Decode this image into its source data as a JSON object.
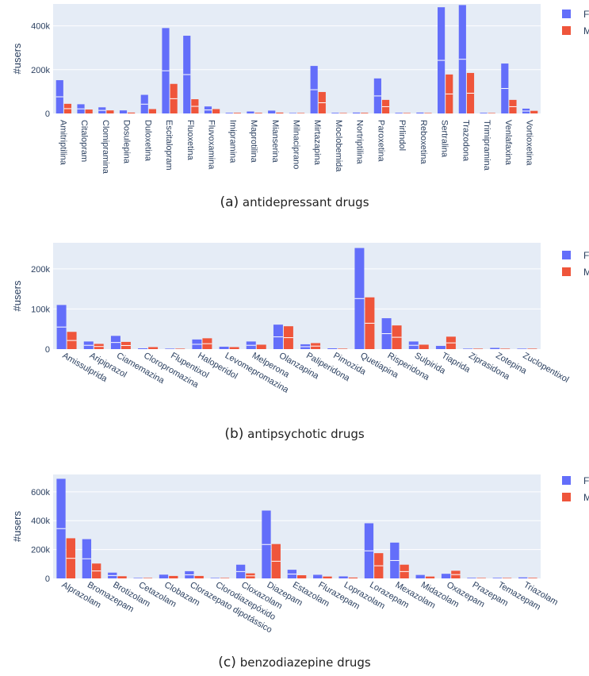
{
  "colors": {
    "F": "#636efa",
    "M": "#ef553b",
    "grid": "#c8c8c8",
    "plot_bg": "#e5ecf6"
  },
  "legend": [
    "F",
    "M"
  ],
  "chart_data": [
    {
      "id": "a",
      "type": "bar",
      "caption_prefix": "(a)",
      "caption_text": "antidepressant drugs",
      "ylabel": "#users",
      "ylim": [
        0,
        500000
      ],
      "yticks": [
        0,
        200000,
        400000
      ],
      "ytick_labels": [
        "0",
        "200k",
        "400k"
      ],
      "x_label_rotation": "vertical",
      "categories": [
        "Amitriptilina",
        "Citalopram",
        "Clomipramina",
        "Dosulepina",
        "Duloxetina",
        "Escitalopram",
        "Fluoxetina",
        "Fluvoxamina",
        "Imipramina",
        "Maprotilina",
        "Mianserina",
        "Milnaciprano",
        "Mirtazapina",
        "Moclobemida",
        "Nortriptilina",
        "Paroxetina",
        "Pirlindol",
        "Reboxetina",
        "Sertralina",
        "Trazodona",
        "Trimipramina",
        "Venlafaxina",
        "Vortioxetina"
      ],
      "series": [
        {
          "name": "F",
          "values": [
            152000,
            42000,
            28000,
            14000,
            85000,
            390000,
            355000,
            32000,
            3000,
            9000,
            13000,
            2000,
            217000,
            3000,
            4000,
            160000,
            3000,
            4000,
            485000,
            495000,
            3000,
            228000,
            22000
          ]
        },
        {
          "name": "M",
          "values": [
            44000,
            18000,
            14000,
            4000,
            20000,
            135000,
            65000,
            20000,
            3000,
            3000,
            4000,
            1000,
            98000,
            2000,
            3000,
            62000,
            1000,
            2000,
            178000,
            185000,
            2000,
            62000,
            12000
          ]
        }
      ]
    },
    {
      "id": "b",
      "type": "bar",
      "caption_prefix": "(b)",
      "caption_text": "antipsychotic drugs",
      "ylabel": "#users",
      "ylim": [
        0,
        265000
      ],
      "yticks": [
        0,
        100000,
        200000
      ],
      "ytick_labels": [
        "0",
        "100k",
        "200k"
      ],
      "x_label_rotation": "diagonal",
      "categories": [
        "Amissulprida",
        "Aripiprazol",
        "Ciamemazina",
        "Cloropromazina",
        "Flupentixol",
        "Haloperidol",
        "Levomepromazina",
        "Melperona",
        "Olanzapina",
        "Paliperidona",
        "Pimozida",
        "Quetiapina",
        "Risperidona",
        "Sulpirida",
        "Tiaprida",
        "Ziprasidona",
        "Zotepina",
        "Zuclopentixol"
      ],
      "series": [
        {
          "name": "F",
          "values": [
            110000,
            19000,
            33000,
            2000,
            1000,
            24000,
            6000,
            19000,
            61000,
            12000,
            2000,
            252000,
            77000,
            19000,
            8000,
            1000,
            3000,
            1000
          ]
        },
        {
          "name": "M",
          "values": [
            43000,
            13000,
            18000,
            5000,
            1000,
            27000,
            5000,
            11000,
            57000,
            15000,
            1000,
            129000,
            59000,
            11000,
            31000,
            1000,
            1000,
            1000
          ]
        }
      ]
    },
    {
      "id": "c",
      "type": "bar",
      "caption_prefix": "(c)",
      "caption_text": "benzodiazepine drugs",
      "ylabel": "#users",
      "ylim": [
        0,
        720000
      ],
      "yticks": [
        0,
        200000,
        400000,
        600000
      ],
      "ytick_labels": [
        "0",
        "200k",
        "400k",
        "600k"
      ],
      "x_label_rotation": "diagonal",
      "categories": [
        "Alprazolam",
        "Bromazepam",
        "Brotizolam",
        "Cetazolam",
        "Clobazam",
        "Clorazepato dipotássico",
        "Clorodiazepóxido",
        "Cloxazolam",
        "Diazepam",
        "Estazolam",
        "Flurazepam",
        "Loprazolam",
        "Lorazepam",
        "Mexazolam",
        "Midazolam",
        "Oxazepam",
        "Prazepam",
        "Temazepam",
        "Triazolam"
      ],
      "series": [
        {
          "name": "F",
          "values": [
            690000,
            272000,
            40000,
            3000,
            26000,
            50000,
            2000,
            95000,
            470000,
            60000,
            25000,
            14000,
            382000,
            248000,
            24000,
            32000,
            4000,
            4000,
            7000
          ]
        },
        {
          "name": "M",
          "values": [
            278000,
            103000,
            15000,
            2000,
            17000,
            17000,
            1000,
            35000,
            238000,
            22000,
            13000,
            6000,
            175000,
            95000,
            13000,
            53000,
            2000,
            2000,
            4000
          ]
        }
      ]
    }
  ]
}
